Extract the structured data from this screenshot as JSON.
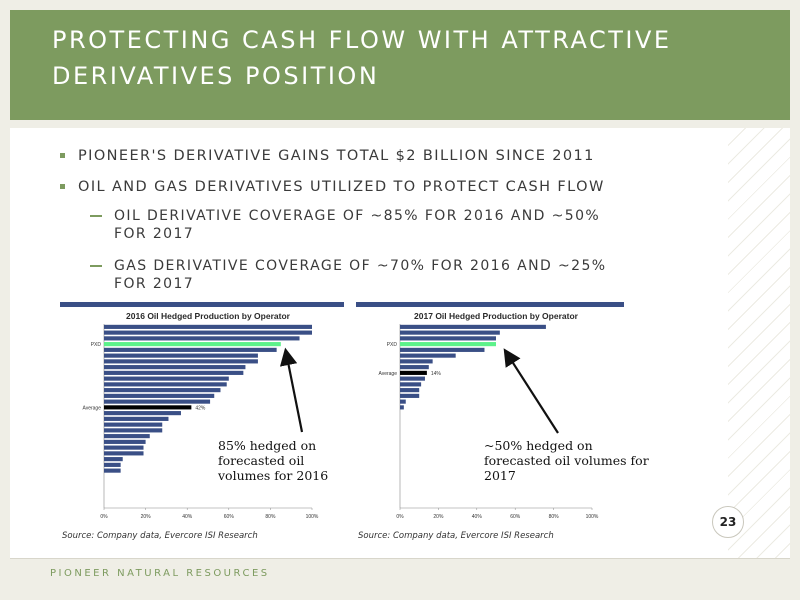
{
  "slide": {
    "title": "PROTECTING CASH FLOW WITH ATTRACTIVE DERIVATIVES POSITION",
    "bullets": [
      "PIONEER'S DERIVATIVE GAINS TOTAL $2 BILLION SINCE 2011",
      "OIL AND GAS DERIVATIVES UTILIZED TO PROTECT CASH FLOW"
    ],
    "sub_bullets": [
      "OIL DERIVATIVE COVERAGE OF ~85% FOR 2016 AND ~50% FOR 2017",
      "GAS DERIVATIVE COVERAGE OF ~70% FOR 2016 AND ~25% FOR 2017"
    ],
    "footer": "PIONEER NATURAL RESOURCES",
    "page_number": "23"
  },
  "colors": {
    "header_bg": "#7d9b5f",
    "chart_rule": "#3a4f86",
    "bar": "#3a4f86",
    "highlight_pxd": "#5cf28a",
    "highlight_average": "#000000"
  },
  "chart_data": [
    {
      "type": "bar",
      "orientation": "horizontal",
      "title": "2016 Oil Hedged Production by Operator",
      "xlim": [
        0,
        100
      ],
      "x_ticks": [
        "0%",
        "20%",
        "40%",
        "60%",
        "80%",
        "100%"
      ],
      "highlight_labels": {
        "PXD": "PXD",
        "Average": "Average"
      },
      "average_label": "42%",
      "categories": [
        "",
        "",
        "",
        "PXD",
        "",
        "",
        "",
        "",
        "",
        "",
        "",
        "",
        "",
        "",
        "Average",
        "",
        "",
        "",
        "",
        "",
        "",
        "",
        "",
        "",
        "",
        "",
        "",
        "",
        "",
        "",
        "",
        ""
      ],
      "values": [
        100,
        100,
        94,
        85,
        83,
        74,
        74,
        68,
        67,
        60,
        59,
        56,
        53,
        51,
        42,
        37,
        31,
        28,
        28,
        22,
        20,
        19,
        19,
        9,
        8,
        8,
        0,
        0,
        0,
        0,
        0,
        0
      ],
      "source": "Source: Company data, Evercore ISI Research",
      "annotation": "85% hedged on forecasted oil volumes for 2016"
    },
    {
      "type": "bar",
      "orientation": "horizontal",
      "title": "2017 Oil Hedged Production by Operator",
      "xlim": [
        0,
        100
      ],
      "x_ticks": [
        "0%",
        "20%",
        "40%",
        "60%",
        "80%",
        "100%"
      ],
      "highlight_labels": {
        "PXD": "PXD",
        "Average": "Average"
      },
      "average_label": "14%",
      "categories": [
        "",
        "",
        "",
        "PXD",
        "",
        "",
        "",
        "",
        "Average",
        "",
        "",
        "",
        "",
        "",
        "",
        "",
        "",
        "",
        "",
        "",
        "",
        "",
        "",
        "",
        "",
        "",
        "",
        "",
        "",
        "",
        "",
        ""
      ],
      "values": [
        76,
        52,
        50,
        50,
        44,
        29,
        17,
        15,
        14,
        13,
        11,
        10,
        10,
        3,
        2,
        0,
        0,
        0,
        0,
        0,
        0,
        0,
        0,
        0,
        0,
        0,
        0,
        0,
        0,
        0,
        0,
        0
      ],
      "source": "Source: Company data, Evercore ISI Research",
      "annotation": "~50% hedged on forecasted oil volumes for 2017"
    }
  ]
}
